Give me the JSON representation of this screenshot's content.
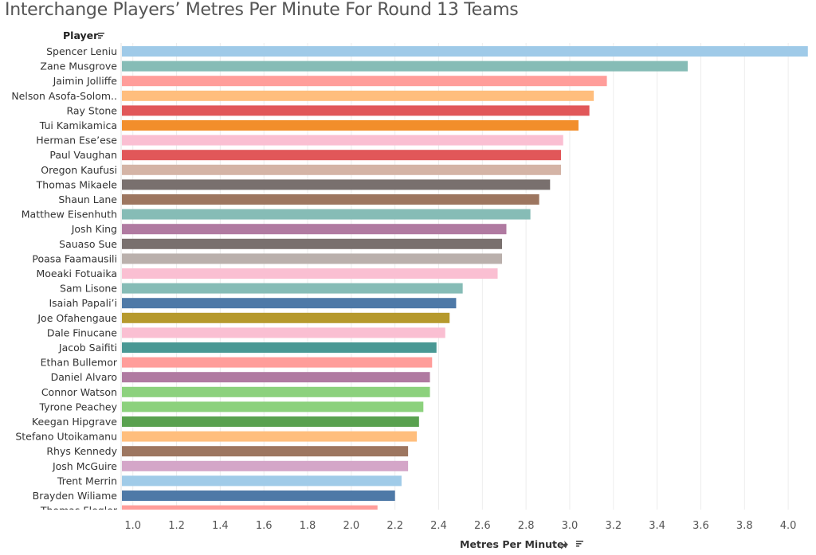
{
  "chart_data": {
    "type": "bar",
    "orientation": "horizontal",
    "title": "Interchange Players’ Metres Per Minute For Round 13 Teams",
    "row_header": "Player",
    "xlabel": "Metres Per Minute",
    "xlim": [
      0.95,
      4.12
    ],
    "xticks": [
      "1.0",
      "1.2",
      "1.4",
      "1.6",
      "1.8",
      "2.0",
      "2.2",
      "2.4",
      "2.6",
      "2.8",
      "3.0",
      "3.2",
      "3.4",
      "3.6",
      "3.8",
      "4.0"
    ],
    "grid": true,
    "categories": [
      "Spencer Leniu",
      "Zane Musgrove",
      "Jaimin Jolliffe",
      "Nelson Asofa-Solom..",
      "Ray Stone",
      "Tui Kamikamica",
      "Herman Ese’ese",
      "Paul Vaughan",
      "Oregon Kaufusi",
      "Thomas Mikaele",
      "Shaun Lane",
      "Matthew Eisenhuth",
      "Josh King",
      "Sauaso Sue",
      "Poasa Faamausili",
      "Moeaki Fotuaika",
      "Sam Lisone",
      "Isaiah Papali’i",
      "Joe Ofahengaue",
      "Dale Finucane",
      "Jacob Saifiti",
      "Ethan Bullemor",
      "Daniel Alvaro",
      "Connor Watson",
      "Tyrone Peachey",
      "Keegan Hipgrave",
      "Stefano Utoikamanu",
      "Rhys Kennedy",
      "Josh McGuire",
      "Trent Merrin",
      "Brayden Wiliame",
      "Thomas Flegler"
    ],
    "values": [
      4.09,
      3.54,
      3.17,
      3.11,
      3.09,
      3.04,
      2.97,
      2.96,
      2.96,
      2.91,
      2.86,
      2.82,
      2.71,
      2.69,
      2.69,
      2.67,
      2.51,
      2.48,
      2.45,
      2.43,
      2.39,
      2.37,
      2.36,
      2.36,
      2.33,
      2.31,
      2.3,
      2.26,
      2.26,
      2.23,
      2.2,
      2.12
    ],
    "colors": [
      "#9fcae8",
      "#86bcb6",
      "#ff9d9a",
      "#ffbe7d",
      "#e15759",
      "#f28e2b",
      "#fabfd2",
      "#e15759",
      "#d4b4a6",
      "#79706e",
      "#9d7660",
      "#86bcb6",
      "#b07aa1",
      "#79706e",
      "#bab0ac",
      "#fabfd2",
      "#86bcb6",
      "#4e79a7",
      "#b6992d",
      "#fabfd2",
      "#499894",
      "#ff9d9a",
      "#b07aa1",
      "#8cd17d",
      "#8cd17d",
      "#59a14f",
      "#ffbe7d",
      "#9d7660",
      "#d4a6c8",
      "#a0cbe8",
      "#4e79a7",
      "#ff9d9a"
    ]
  }
}
